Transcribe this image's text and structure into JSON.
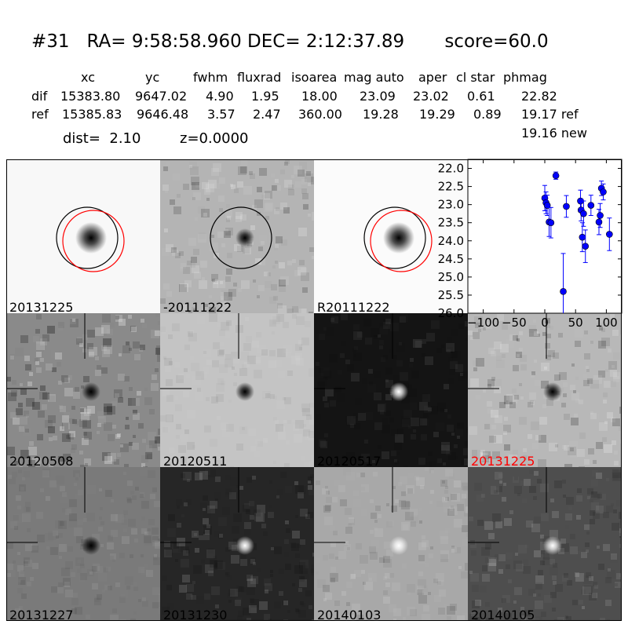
{
  "header": {
    "title": "#31   RA= 9:58:58.960 DEC= 2:12:37.89       score=60.0",
    "columns": [
      "xc",
      "yc",
      "fwhm",
      "fluxrad",
      "isoarea",
      "mag auto",
      "aper",
      "cl star",
      "phmag"
    ],
    "rows": [
      {
        "label": "dif",
        "values": [
          "15383.80",
          "9647.02",
          "4.90",
          "1.95",
          "18.00",
          "23.09",
          "23.02",
          "0.61",
          "22.82"
        ]
      },
      {
        "label": "ref",
        "values": [
          "15385.83",
          "9646.48",
          "3.57",
          "2.47",
          "360.00",
          "19.28",
          "19.29",
          "0.89",
          "19.17 ref"
        ]
      }
    ],
    "extra_phmag": "19.16 new",
    "dist": "dist=  2.10",
    "z": "z=0.0000"
  },
  "panels": [
    {
      "label": "20131225",
      "label_color": "#000000",
      "style": "new",
      "circles": [
        "black",
        "red"
      ],
      "crosshair": false
    },
    {
      "label": "-20111222",
      "label_color": "#000000",
      "style": "diff",
      "circles": [
        "black"
      ],
      "crosshair": false
    },
    {
      "label": "R20111222",
      "label_color": "#000000",
      "style": "ref",
      "circles": [
        "black",
        "red"
      ],
      "crosshair": false
    },
    {
      "label": "20120508",
      "label_color": "#000000",
      "style": "noisy",
      "crosshair": true
    },
    {
      "label": "20120511",
      "label_color": "#000000",
      "style": "lightgray",
      "crosshair": true
    },
    {
      "label": "20120517",
      "label_color": "#000000",
      "style": "black",
      "crosshair": true
    },
    {
      "label": "20131225",
      "label_color": "#ff0000",
      "style": "diff2",
      "crosshair": true
    },
    {
      "label": "20131227",
      "label_color": "#000000",
      "style": "midgray",
      "crosshair": true
    },
    {
      "label": "20131230",
      "label_color": "#000000",
      "style": "dark",
      "crosshair": true
    },
    {
      "label": "20140103",
      "label_color": "#000000",
      "style": "lightgray2",
      "crosshair": true
    },
    {
      "label": "20140105",
      "label_color": "#000000",
      "style": "darkgray",
      "crosshair": true
    }
  ],
  "chart_data": {
    "type": "scatter",
    "title": "",
    "xlabel": "",
    "ylabel": "",
    "xlim": [
      -125,
      125
    ],
    "ylim": [
      26.0,
      21.75
    ],
    "y_inverted": true,
    "x_ticks": [
      -100,
      -50,
      0,
      50,
      100
    ],
    "x_tick_labels": [
      "−100",
      "−50",
      "0",
      "50",
      "100"
    ],
    "y_ticks": [
      22.0,
      22.5,
      23.0,
      23.5,
      24.0,
      24.5,
      25.0,
      25.5,
      26.0
    ],
    "y_tick_labels": [
      "22.0",
      "22.5",
      "23.0",
      "23.5",
      "24.0",
      "24.5",
      "25.0",
      "25.5",
      "26.0"
    ],
    "color": "#0000ff",
    "points": [
      {
        "x": 0,
        "y": 22.82,
        "err": 0.35
      },
      {
        "x": 2,
        "y": 22.95,
        "err": 0.3
      },
      {
        "x": 4,
        "y": 23.02,
        "err": 0.28
      },
      {
        "x": 7,
        "y": 23.48,
        "err": 0.4
      },
      {
        "x": 10,
        "y": 23.5,
        "err": 0.42
      },
      {
        "x": 18,
        "y": 22.2,
        "err": 0.1
      },
      {
        "x": 30,
        "y": 25.4,
        "err": 1.05
      },
      {
        "x": 35,
        "y": 23.05,
        "err": 0.3
      },
      {
        "x": 58,
        "y": 22.9,
        "err": 0.3
      },
      {
        "x": 59,
        "y": 23.15,
        "err": 0.3
      },
      {
        "x": 61,
        "y": 23.9,
        "err": 0.4
      },
      {
        "x": 63,
        "y": 23.25,
        "err": 0.35
      },
      {
        "x": 66,
        "y": 24.15,
        "err": 0.45
      },
      {
        "x": 75,
        "y": 23.02,
        "err": 0.28
      },
      {
        "x": 88,
        "y": 23.48,
        "err": 0.35
      },
      {
        "x": 90,
        "y": 23.3,
        "err": 0.33
      },
      {
        "x": 92,
        "y": 22.55,
        "err": 0.2
      },
      {
        "x": 95,
        "y": 22.65,
        "err": 0.22
      },
      {
        "x": 105,
        "y": 23.82,
        "err": 0.45
      }
    ]
  }
}
